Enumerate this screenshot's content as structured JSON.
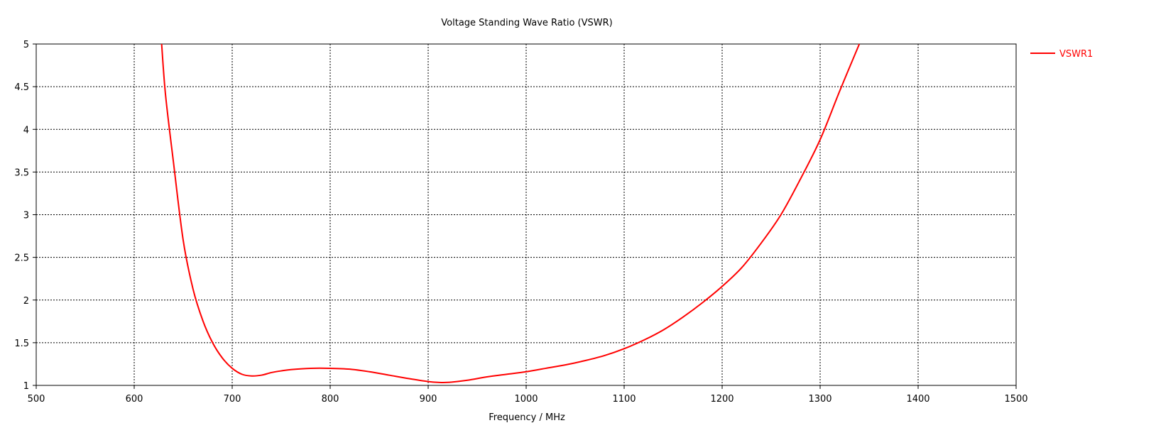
{
  "chart_data": {
    "type": "line",
    "title": "Voltage Standing Wave Ratio (VSWR)",
    "xlabel": "Frequency / MHz",
    "ylabel": "",
    "xlim": [
      500,
      1500
    ],
    "ylim": [
      1,
      5
    ],
    "xticks": [
      500,
      600,
      700,
      800,
      900,
      1000,
      1100,
      1200,
      1300,
      1400,
      1500
    ],
    "yticks": [
      1,
      1.5,
      2,
      2.5,
      3,
      3.5,
      4,
      4.5,
      5
    ],
    "xtick_labels": [
      "500",
      "600",
      "700",
      "800",
      "900",
      "1000",
      "1100",
      "1200",
      "1300",
      "1400",
      "1500"
    ],
    "ytick_labels": [
      "1",
      "1.5",
      "2",
      "2.5",
      "3",
      "3.5",
      "4",
      "4.5",
      "5"
    ],
    "grid": true,
    "grid_style": "dashed",
    "legend_position": "right",
    "series": [
      {
        "name": "VSWR1",
        "color": "#ff0000",
        "x": [
          628,
          632,
          640,
          650,
          660,
          670,
          680,
          690,
          700,
          710,
          720,
          730,
          740,
          750,
          760,
          780,
          800,
          820,
          840,
          860,
          880,
          900,
          910,
          920,
          940,
          960,
          980,
          1000,
          1020,
          1040,
          1060,
          1080,
          1100,
          1120,
          1140,
          1160,
          1180,
          1200,
          1220,
          1240,
          1260,
          1280,
          1300,
          1320,
          1340
        ],
        "y": [
          5.0,
          4.4,
          3.62,
          2.7,
          2.13,
          1.76,
          1.5,
          1.32,
          1.2,
          1.13,
          1.11,
          1.12,
          1.15,
          1.17,
          1.185,
          1.2,
          1.2,
          1.19,
          1.16,
          1.12,
          1.08,
          1.045,
          1.035,
          1.035,
          1.06,
          1.1,
          1.13,
          1.16,
          1.2,
          1.24,
          1.29,
          1.35,
          1.43,
          1.53,
          1.65,
          1.8,
          1.97,
          2.16,
          2.38,
          2.67,
          3.0,
          3.42,
          3.88,
          4.45,
          5.0
        ]
      }
    ]
  }
}
